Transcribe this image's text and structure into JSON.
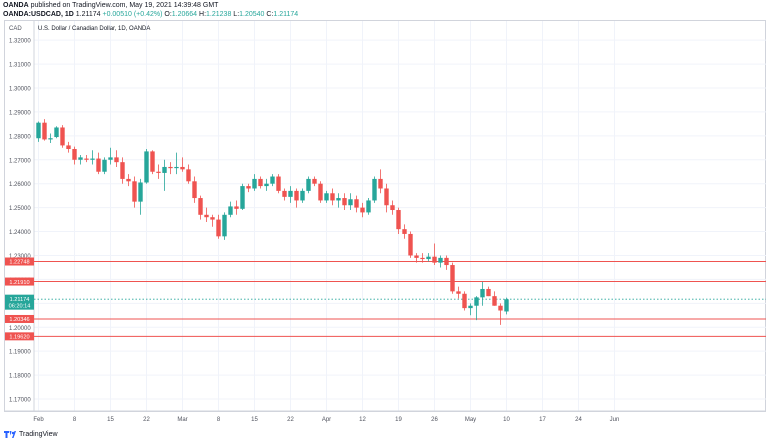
{
  "header": {
    "line1_symbol": "OANDA",
    "line1_rest": " published on TradingView.com, May 19, 2021 14:39:48 GMT",
    "symbol": "OANDA:USDCAD, 1D",
    "last": "1.21174",
    "change": "+0.00510 (+0.42%)",
    "o_label": "O:",
    "o_val": "1.20664",
    "h_label": "H:",
    "h_val": "1.21238",
    "l_label": "L:",
    "l_val": "1.20540",
    "c_label": "C:",
    "c_val": "1.21174"
  },
  "footer": {
    "brand": "TradingView"
  },
  "chart_data": {
    "type": "candlestick",
    "currency_label": "CAD",
    "title": "U.S. Dollar / Canadian Dollar, 1D, OANDA",
    "ylim": [
      1.165,
      1.328
    ],
    "yticks": [
      "1.17000",
      "1.18000",
      "1.19000",
      "1.20000",
      "1.21000",
      "1.22000",
      "1.23000",
      "1.24000",
      "1.25000",
      "1.26000",
      "1.27000",
      "1.28000",
      "1.29000",
      "1.30000",
      "1.31000",
      "1.32000"
    ],
    "xtick_labels": [
      "Feb",
      "8",
      "15",
      "22",
      "Mar",
      "8",
      "15",
      "22",
      "Apr",
      "12",
      "19",
      "26",
      "May",
      "10",
      "17",
      "24",
      "Jun"
    ],
    "xtick_index": [
      0,
      6,
      12,
      18,
      24,
      30,
      36,
      42,
      48,
      54,
      60,
      66,
      72,
      78,
      84,
      90,
      96
    ],
    "up_color": "#26a69a",
    "down_color": "#ef5350",
    "levels": [
      {
        "label": "1.22748",
        "value": 1.22748,
        "type": "resistance"
      },
      {
        "label": "1.21910",
        "value": 1.2191,
        "type": "resistance"
      },
      {
        "label": "1.20346",
        "value": 1.20346,
        "type": "support"
      },
      {
        "label": "1.19620",
        "value": 1.1962,
        "type": "support"
      }
    ],
    "current_price": {
      "label": "1.21174",
      "countdown": "06:20:14",
      "value": 1.21174
    },
    "candles": [
      {
        "i": 0,
        "o": 1.279,
        "h": 1.286,
        "l": 1.2775,
        "c": 1.2855
      },
      {
        "i": 1,
        "o": 1.2855,
        "h": 1.287,
        "l": 1.278,
        "c": 1.2785
      },
      {
        "i": 2,
        "o": 1.2785,
        "h": 1.281,
        "l": 1.277,
        "c": 1.279
      },
      {
        "i": 3,
        "o": 1.2795,
        "h": 1.284,
        "l": 1.279,
        "c": 1.2835
      },
      {
        "i": 4,
        "o": 1.2835,
        "h": 1.2845,
        "l": 1.275,
        "c": 1.276
      },
      {
        "i": 5,
        "o": 1.276,
        "h": 1.2775,
        "l": 1.273,
        "c": 1.2745
      },
      {
        "i": 6,
        "o": 1.2745,
        "h": 1.2755,
        "l": 1.268,
        "c": 1.27
      },
      {
        "i": 7,
        "o": 1.27,
        "h": 1.272,
        "l": 1.268,
        "c": 1.271
      },
      {
        "i": 8,
        "o": 1.2705,
        "h": 1.272,
        "l": 1.269,
        "c": 1.27
      },
      {
        "i": 9,
        "o": 1.27,
        "h": 1.274,
        "l": 1.268,
        "c": 1.2705
      },
      {
        "i": 10,
        "o": 1.2705,
        "h": 1.273,
        "l": 1.264,
        "c": 1.265
      },
      {
        "i": 11,
        "o": 1.265,
        "h": 1.271,
        "l": 1.264,
        "c": 1.27
      },
      {
        "i": 12,
        "o": 1.27,
        "h": 1.275,
        "l": 1.268,
        "c": 1.271
      },
      {
        "i": 13,
        "o": 1.271,
        "h": 1.274,
        "l": 1.267,
        "c": 1.269
      },
      {
        "i": 14,
        "o": 1.269,
        "h": 1.271,
        "l": 1.26,
        "c": 1.262
      },
      {
        "i": 15,
        "o": 1.262,
        "h": 1.264,
        "l": 1.259,
        "c": 1.261
      },
      {
        "i": 16,
        "o": 1.261,
        "h": 1.263,
        "l": 1.25,
        "c": 1.2525
      },
      {
        "i": 17,
        "o": 1.2525,
        "h": 1.262,
        "l": 1.247,
        "c": 1.2605
      },
      {
        "i": 18,
        "o": 1.2605,
        "h": 1.2745,
        "l": 1.26,
        "c": 1.2735
      },
      {
        "i": 19,
        "o": 1.2735,
        "h": 1.274,
        "l": 1.264,
        "c": 1.265
      },
      {
        "i": 20,
        "o": 1.265,
        "h": 1.268,
        "l": 1.262,
        "c": 1.2645
      },
      {
        "i": 21,
        "o": 1.2645,
        "h": 1.27,
        "l": 1.257,
        "c": 1.267
      },
      {
        "i": 22,
        "o": 1.267,
        "h": 1.269,
        "l": 1.264,
        "c": 1.2665
      },
      {
        "i": 23,
        "o": 1.2665,
        "h": 1.273,
        "l": 1.264,
        "c": 1.267
      },
      {
        "i": 24,
        "o": 1.267,
        "h": 1.271,
        "l": 1.265,
        "c": 1.266
      },
      {
        "i": 25,
        "o": 1.266,
        "h": 1.268,
        "l": 1.26,
        "c": 1.261
      },
      {
        "i": 26,
        "o": 1.261,
        "h": 1.263,
        "l": 1.252,
        "c": 1.254
      },
      {
        "i": 27,
        "o": 1.254,
        "h": 1.255,
        "l": 1.245,
        "c": 1.247
      },
      {
        "i": 28,
        "o": 1.247,
        "h": 1.25,
        "l": 1.244,
        "c": 1.246
      },
      {
        "i": 29,
        "o": 1.246,
        "h": 1.247,
        "l": 1.242,
        "c": 1.245
      },
      {
        "i": 30,
        "o": 1.245,
        "h": 1.247,
        "l": 1.237,
        "c": 1.238
      },
      {
        "i": 31,
        "o": 1.238,
        "h": 1.248,
        "l": 1.2365,
        "c": 1.247
      },
      {
        "i": 32,
        "o": 1.247,
        "h": 1.2525,
        "l": 1.246,
        "c": 1.2505
      },
      {
        "i": 33,
        "o": 1.2505,
        "h": 1.253,
        "l": 1.247,
        "c": 1.2495
      },
      {
        "i": 34,
        "o": 1.2495,
        "h": 1.26,
        "l": 1.249,
        "c": 1.259
      },
      {
        "i": 35,
        "o": 1.259,
        "h": 1.26,
        "l": 1.2565,
        "c": 1.258
      },
      {
        "i": 36,
        "o": 1.258,
        "h": 1.264,
        "l": 1.257,
        "c": 1.262
      },
      {
        "i": 37,
        "o": 1.262,
        "h": 1.263,
        "l": 1.258,
        "c": 1.259
      },
      {
        "i": 38,
        "o": 1.259,
        "h": 1.262,
        "l": 1.257,
        "c": 1.26
      },
      {
        "i": 39,
        "o": 1.26,
        "h": 1.264,
        "l": 1.259,
        "c": 1.263
      },
      {
        "i": 40,
        "o": 1.263,
        "h": 1.264,
        "l": 1.256,
        "c": 1.257
      },
      {
        "i": 41,
        "o": 1.257,
        "h": 1.258,
        "l": 1.253,
        "c": 1.2545
      },
      {
        "i": 42,
        "o": 1.2545,
        "h": 1.259,
        "l": 1.252,
        "c": 1.257
      },
      {
        "i": 43,
        "o": 1.257,
        "h": 1.258,
        "l": 1.25,
        "c": 1.253
      },
      {
        "i": 44,
        "o": 1.253,
        "h": 1.258,
        "l": 1.252,
        "c": 1.257
      },
      {
        "i": 45,
        "o": 1.257,
        "h": 1.263,
        "l": 1.256,
        "c": 1.262
      },
      {
        "i": 46,
        "o": 1.262,
        "h": 1.263,
        "l": 1.259,
        "c": 1.26
      },
      {
        "i": 47,
        "o": 1.26,
        "h": 1.261,
        "l": 1.252,
        "c": 1.253
      },
      {
        "i": 48,
        "o": 1.253,
        "h": 1.257,
        "l": 1.252,
        "c": 1.256
      },
      {
        "i": 49,
        "o": 1.256,
        "h": 1.258,
        "l": 1.251,
        "c": 1.253
      },
      {
        "i": 50,
        "o": 1.253,
        "h": 1.256,
        "l": 1.25,
        "c": 1.254
      },
      {
        "i": 51,
        "o": 1.254,
        "h": 1.256,
        "l": 1.249,
        "c": 1.251
      },
      {
        "i": 52,
        "o": 1.251,
        "h": 1.256,
        "l": 1.249,
        "c": 1.2535
      },
      {
        "i": 53,
        "o": 1.2535,
        "h": 1.255,
        "l": 1.248,
        "c": 1.25
      },
      {
        "i": 54,
        "o": 1.25,
        "h": 1.252,
        "l": 1.246,
        "c": 1.248
      },
      {
        "i": 55,
        "o": 1.248,
        "h": 1.254,
        "l": 1.247,
        "c": 1.253
      },
      {
        "i": 56,
        "o": 1.253,
        "h": 1.263,
        "l": 1.252,
        "c": 1.262
      },
      {
        "i": 57,
        "o": 1.262,
        "h": 1.266,
        "l": 1.256,
        "c": 1.258
      },
      {
        "i": 58,
        "o": 1.258,
        "h": 1.26,
        "l": 1.248,
        "c": 1.251
      },
      {
        "i": 59,
        "o": 1.251,
        "h": 1.253,
        "l": 1.247,
        "c": 1.249
      },
      {
        "i": 60,
        "o": 1.249,
        "h": 1.25,
        "l": 1.239,
        "c": 1.241
      },
      {
        "i": 61,
        "o": 1.241,
        "h": 1.243,
        "l": 1.237,
        "c": 1.239
      },
      {
        "i": 62,
        "o": 1.239,
        "h": 1.24,
        "l": 1.229,
        "c": 1.23
      },
      {
        "i": 63,
        "o": 1.23,
        "h": 1.231,
        "l": 1.227,
        "c": 1.229
      },
      {
        "i": 64,
        "o": 1.229,
        "h": 1.231,
        "l": 1.227,
        "c": 1.2285
      },
      {
        "i": 65,
        "o": 1.2285,
        "h": 1.231,
        "l": 1.2275,
        "c": 1.2295
      },
      {
        "i": 66,
        "o": 1.2295,
        "h": 1.235,
        "l": 1.226,
        "c": 1.227
      },
      {
        "i": 67,
        "o": 1.227,
        "h": 1.23,
        "l": 1.225,
        "c": 1.229
      },
      {
        "i": 68,
        "o": 1.229,
        "h": 1.23,
        "l": 1.224,
        "c": 1.226
      },
      {
        "i": 69,
        "o": 1.226,
        "h": 1.227,
        "l": 1.214,
        "c": 1.215
      },
      {
        "i": 70,
        "o": 1.215,
        "h": 1.217,
        "l": 1.212,
        "c": 1.214
      },
      {
        "i": 71,
        "o": 1.214,
        "h": 1.215,
        "l": 1.207,
        "c": 1.208
      },
      {
        "i": 72,
        "o": 1.208,
        "h": 1.21,
        "l": 1.205,
        "c": 1.209
      },
      {
        "i": 73,
        "o": 1.209,
        "h": 1.213,
        "l": 1.203,
        "c": 1.2125
      },
      {
        "i": 74,
        "o": 1.2125,
        "h": 1.219,
        "l": 1.209,
        "c": 1.216
      },
      {
        "i": 75,
        "o": 1.216,
        "h": 1.217,
        "l": 1.213,
        "c": 1.213
      },
      {
        "i": 76,
        "o": 1.213,
        "h": 1.215,
        "l": 1.209,
        "c": 1.209
      },
      {
        "i": 77,
        "o": 1.209,
        "h": 1.21,
        "l": 1.201,
        "c": 1.207
      },
      {
        "i": 78,
        "o": 1.2066,
        "h": 1.2124,
        "l": 1.2054,
        "c": 1.2117
      }
    ]
  }
}
